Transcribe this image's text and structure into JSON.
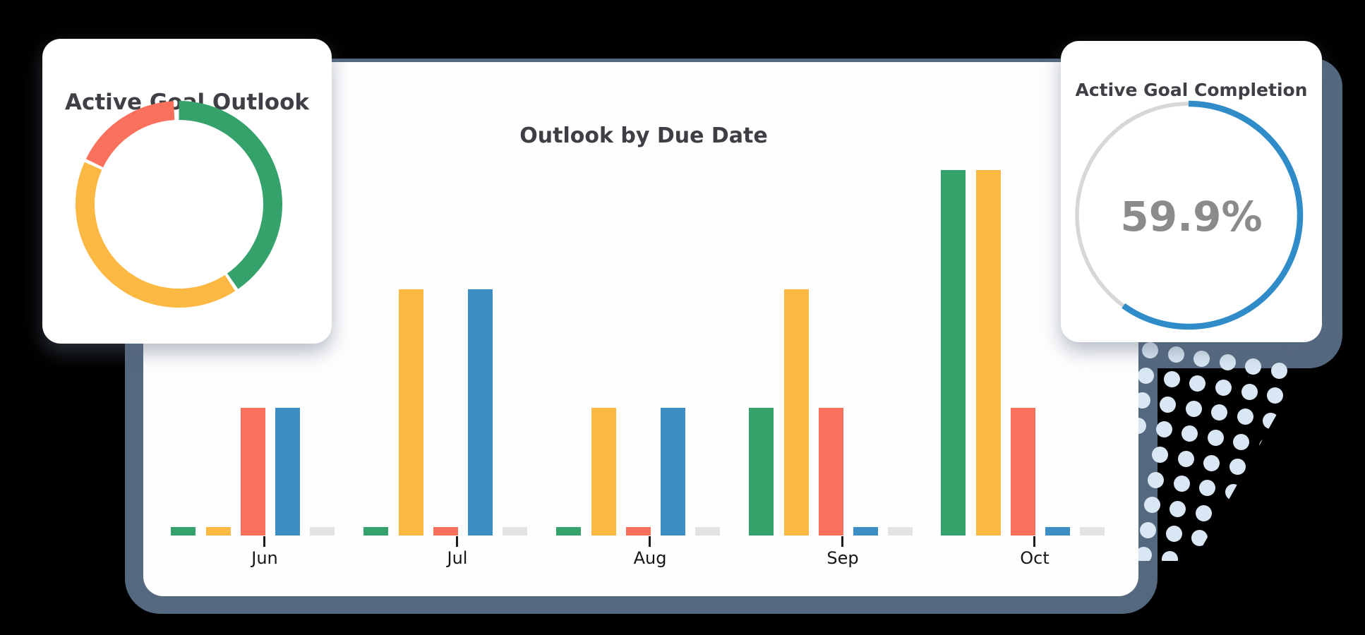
{
  "cards": {
    "goal_outlook": {
      "title": "Active Goal Outlook"
    },
    "goal_completion": {
      "title": "Active Goal Completion",
      "value_label": "59.9%"
    }
  },
  "bar_chart": {
    "title": "Outlook by Due Date"
  },
  "colors": {
    "green": "#36A26B",
    "yellow": "#FBB944",
    "red": "#F9705C",
    "blue": "#3E8EC6",
    "gray": "#E3E2E4",
    "progress_blue": "#2F8CC9",
    "progress_track": "#D7D7D7",
    "backdrop_slate": "#54687F",
    "dot_fill": "#D9E7F4",
    "title_text": "#3F3F46",
    "percent_text": "#8B8B8B"
  },
  "chart_data": [
    {
      "type": "bar",
      "title": "Outlook by Due Date",
      "categories": [
        "Jun",
        "Jul",
        "Aug",
        "Sep",
        "Oct"
      ],
      "series": [
        {
          "name": "green",
          "color": "#36A26B",
          "values": [
            1,
            1,
            1,
            15,
            43
          ]
        },
        {
          "name": "yellow",
          "color": "#FBB944",
          "values": [
            1,
            29,
            15,
            29,
            43
          ]
        },
        {
          "name": "red",
          "color": "#F9705C",
          "values": [
            15,
            1,
            1,
            15,
            15
          ]
        },
        {
          "name": "blue",
          "color": "#3E8EC6",
          "values": [
            15,
            29,
            15,
            1,
            1
          ]
        },
        {
          "name": "gray",
          "color": "#E3E2E4",
          "values": [
            1,
            1,
            1,
            1,
            1
          ]
        }
      ],
      "xlabel": "",
      "ylabel": "",
      "ylim": [
        0,
        45
      ],
      "grid": false,
      "legend": "none",
      "axes_hidden": true
    },
    {
      "type": "pie",
      "title": "Active Goal Outlook",
      "style": "donut-ring",
      "segments": [
        {
          "name": "green",
          "color": "#36A26B",
          "start_deg": 0,
          "sweep_deg": 145,
          "share_pct": 40.3
        },
        {
          "name": "yellow",
          "color": "#FBB944",
          "start_deg": 147,
          "sweep_deg": 147,
          "share_pct": 40.8
        },
        {
          "name": "red",
          "color": "#F9705C",
          "start_deg": 296,
          "sweep_deg": 61,
          "share_pct": 17.0
        }
      ]
    },
    {
      "type": "pie",
      "title": "Active Goal Completion",
      "style": "progress-ring",
      "value_pct": 59.9,
      "value_label": "59.9%",
      "ring_color": "#2F8CC9",
      "track_color": "#D7D7D7"
    }
  ]
}
